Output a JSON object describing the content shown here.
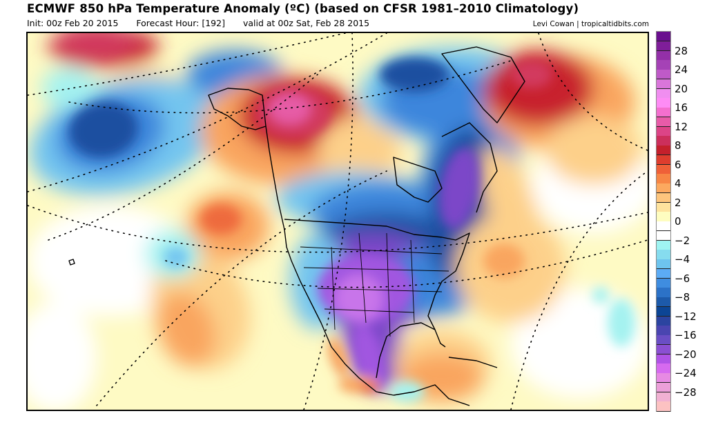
{
  "header": {
    "title": "ECMWF 850 hPa Temperature Anomaly (ºC) (based on CFSR 1981–2010 Climatology)",
    "init": "Init: 00z Feb 20 2015",
    "forecast_hour": "Forecast Hour: [192]",
    "valid": "valid at 00z Sat, Feb 28 2015",
    "credit": "Levi Cowan | tropicaltidbits.com"
  },
  "colorbar": {
    "units": "ºC",
    "labels": [
      "28",
      "24",
      "20",
      "16",
      "12",
      "8",
      "6",
      "4",
      "2",
      "0",
      "−2",
      "−4",
      "−6",
      "−8",
      "−12",
      "−16",
      "−20",
      "−24",
      "−28"
    ],
    "colors": [
      "#6a0f8e",
      "#7f1e99",
      "#9330a8",
      "#a542b6",
      "#bf5ac8",
      "#da76db",
      "#f08ef0",
      "#fe8cf5",
      "#f46fcf",
      "#e85ba8",
      "#dc4487",
      "#cc2f5c",
      "#c4202c",
      "#de3d2e",
      "#ef6038",
      "#f78645",
      "#fca95f",
      "#fdc57d",
      "#fee39e",
      "#fefdc0",
      "#ffffff",
      "#ffffff",
      "#9ff4f2",
      "#86dcef",
      "#6ec4ee",
      "#5cabf5",
      "#3f8de0",
      "#2c72c7",
      "#1d5aaa",
      "#0c4595",
      "#2b44a0",
      "#4a45b0",
      "#6a4ec4",
      "#8b4fd2",
      "#b053e6",
      "#d66aef",
      "#e78ae3",
      "#ec9fd9",
      "#f1b1d2",
      "#fcc2c2",
      "#fdd4b4"
    ]
  },
  "map": {
    "region": "North America",
    "palette": {
      "deep_purple": "#7b46c8",
      "purple": "#a157e0",
      "light_purple": "#c875ea",
      "navy": "#1b4fa0",
      "blue": "#3e86dc",
      "light_blue": "#73c5ef",
      "cyan": "#a4f2f0",
      "white": "#ffffff",
      "pale_yellow": "#fefac4",
      "light_orange": "#fdd08a",
      "orange": "#f9a55e",
      "dark_orange": "#ee6a3c",
      "red": "#c8202e",
      "crimson": "#d23a5e",
      "pink": "#e65ca6"
    }
  }
}
